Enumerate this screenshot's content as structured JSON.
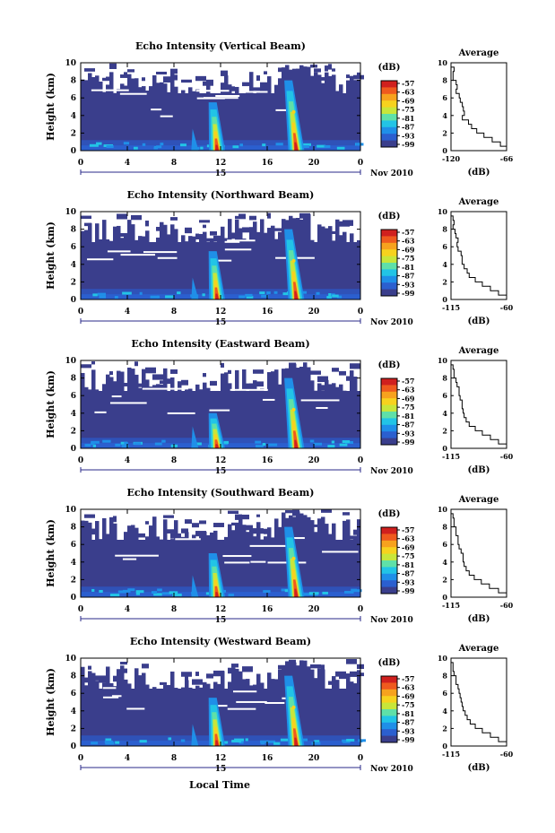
{
  "figure": {
    "xlabel_bottom": "Local Time",
    "date_label": "Nov 2010",
    "day_label": "15",
    "ylabel": "Height (km)",
    "colorbar_unit": "(dB)",
    "profile_title": "Average",
    "profile_xlabel": "(dB)"
  },
  "colors": {
    "background": "#3a3e8c",
    "colormap": [
      "#3a3e8c",
      "#2b5fcf",
      "#1f8fe8",
      "#22c4e6",
      "#5fe0a8",
      "#c8e63a",
      "#f7d21e",
      "#f7a21e",
      "#ef5a1e",
      "#d0201e"
    ]
  },
  "chart_data": [
    {
      "type": "heatmap",
      "title": "Echo Intensity (Vertical Beam)",
      "xlabel": "",
      "ylabel": "Height (km)",
      "x_ticks": [
        "0",
        "4",
        "8",
        "12",
        "16",
        "20",
        "0"
      ],
      "xlim": [
        0,
        24
      ],
      "y_ticks": [
        "0",
        "2",
        "4",
        "6",
        "8",
        "10"
      ],
      "ylim": [
        0,
        10
      ],
      "colorbar": {
        "label": "(dB)",
        "ticks": [
          "-57",
          "-63",
          "-69",
          "-75",
          "-81",
          "-87",
          "-93",
          "-99"
        ]
      },
      "features": [
        {
          "name": "convective_cell_1",
          "time_h": 11.7,
          "top_km": 5.5
        },
        {
          "name": "convective_cell_2",
          "time_h": 18.5,
          "top_km": 8.0
        }
      ],
      "profile": {
        "title": "Average",
        "xlabel": "(dB)",
        "x_ticks": [
          "-120",
          "-66"
        ],
        "xlim": [
          -120,
          -66
        ],
        "y_ticks": [
          "0",
          "2",
          "4",
          "6",
          "8",
          "10"
        ],
        "ylim": [
          0,
          10
        ],
        "points": [
          [
            -66,
            0
          ],
          [
            -72,
            0.5
          ],
          [
            -80,
            1
          ],
          [
            -88,
            1.5
          ],
          [
            -95,
            2
          ],
          [
            -100,
            2.5
          ],
          [
            -103,
            3
          ],
          [
            -109,
            3.5
          ],
          [
            -107,
            4
          ],
          [
            -108,
            4.5
          ],
          [
            -109,
            5
          ],
          [
            -111,
            5.5
          ],
          [
            -112,
            6
          ],
          [
            -115,
            6.5
          ],
          [
            -114,
            7
          ],
          [
            -115,
            7.5
          ],
          [
            -118,
            8
          ],
          [
            -118,
            8.5
          ],
          [
            -117,
            9
          ],
          [
            -120,
            9.5
          ]
        ]
      }
    },
    {
      "type": "heatmap",
      "title": "Echo Intensity (Northward Beam)",
      "xlabel": "",
      "ylabel": "Height (km)",
      "x_ticks": [
        "0",
        "4",
        "8",
        "12",
        "16",
        "20",
        "0"
      ],
      "xlim": [
        0,
        24
      ],
      "y_ticks": [
        "0",
        "2",
        "4",
        "6",
        "8",
        "10"
      ],
      "ylim": [
        0,
        10
      ],
      "colorbar": {
        "label": "(dB)",
        "ticks": [
          "-57",
          "-63",
          "-69",
          "-75",
          "-81",
          "-87",
          "-93",
          "-99"
        ]
      },
      "features": [
        {
          "name": "convective_cell_1",
          "time_h": 11.7,
          "top_km": 5.5
        },
        {
          "name": "convective_cell_2",
          "time_h": 18.5,
          "top_km": 8.0
        }
      ],
      "profile": {
        "title": "Average",
        "xlabel": "(dB)",
        "x_ticks": [
          "-115",
          "-60"
        ],
        "xlim": [
          -115,
          -60
        ],
        "y_ticks": [
          "0",
          "2",
          "4",
          "6",
          "8",
          "10"
        ],
        "ylim": [
          0,
          10
        ],
        "points": [
          [
            -60,
            0
          ],
          [
            -68,
            0.5
          ],
          [
            -76,
            1
          ],
          [
            -84,
            1.5
          ],
          [
            -91,
            2
          ],
          [
            -97,
            2.5
          ],
          [
            -99,
            3
          ],
          [
            -102,
            3.5
          ],
          [
            -104,
            4
          ],
          [
            -104,
            4.5
          ],
          [
            -105,
            5
          ],
          [
            -108,
            5.5
          ],
          [
            -109,
            6
          ],
          [
            -108,
            6.5
          ],
          [
            -110,
            7
          ],
          [
            -111,
            7.5
          ],
          [
            -113,
            8
          ],
          [
            -112,
            8.5
          ],
          [
            -113,
            9
          ],
          [
            -115,
            9.5
          ]
        ]
      }
    },
    {
      "type": "heatmap",
      "title": "Echo Intensity (Eastward Beam)",
      "xlabel": "",
      "ylabel": "Height (km)",
      "x_ticks": [
        "0",
        "4",
        "8",
        "12",
        "16",
        "20",
        "0"
      ],
      "xlim": [
        0,
        24
      ],
      "y_ticks": [
        "0",
        "2",
        "4",
        "6",
        "8",
        "10"
      ],
      "ylim": [
        0,
        10
      ],
      "colorbar": {
        "label": "(dB)",
        "ticks": [
          "-57",
          "-63",
          "-69",
          "-75",
          "-81",
          "-87",
          "-93",
          "-99"
        ]
      },
      "features": [
        {
          "name": "convective_cell_1",
          "time_h": 11.7,
          "top_km": 4.0
        },
        {
          "name": "convective_cell_2",
          "time_h": 18.5,
          "top_km": 8.0
        }
      ],
      "profile": {
        "title": "Average",
        "xlabel": "(dB)",
        "x_ticks": [
          "-115",
          "-60"
        ],
        "xlim": [
          -115,
          -60
        ],
        "y_ticks": [
          "0",
          "2",
          "4",
          "6",
          "8",
          "10"
        ],
        "ylim": [
          0,
          10
        ],
        "points": [
          [
            -60,
            0
          ],
          [
            -68,
            0.5
          ],
          [
            -76,
            1
          ],
          [
            -84,
            1.5
          ],
          [
            -91,
            2
          ],
          [
            -97,
            2.5
          ],
          [
            -100,
            3
          ],
          [
            -102,
            3.5
          ],
          [
            -103,
            4
          ],
          [
            -104,
            4.5
          ],
          [
            -104,
            5
          ],
          [
            -106,
            5.5
          ],
          [
            -107,
            6
          ],
          [
            -107,
            6.5
          ],
          [
            -109,
            7
          ],
          [
            -110,
            7.5
          ],
          [
            -112,
            8
          ],
          [
            -112,
            8.5
          ],
          [
            -113,
            9
          ],
          [
            -115,
            9.5
          ]
        ]
      }
    },
    {
      "type": "heatmap",
      "title": "Echo Intensity (Southward Beam)",
      "xlabel": "",
      "ylabel": "Height (km)",
      "x_ticks": [
        "0",
        "4",
        "8",
        "12",
        "16",
        "20",
        "0"
      ],
      "xlim": [
        0,
        24
      ],
      "y_ticks": [
        "0",
        "2",
        "4",
        "6",
        "8",
        "10"
      ],
      "ylim": [
        0,
        10
      ],
      "colorbar": {
        "label": "(dB)",
        "ticks": [
          "-57",
          "-63",
          "-69",
          "-75",
          "-81",
          "-87",
          "-93",
          "-99"
        ]
      },
      "features": [
        {
          "name": "convective_cell_1",
          "time_h": 11.7,
          "top_km": 5.0
        },
        {
          "name": "convective_cell_2",
          "time_h": 18.5,
          "top_km": 8.0
        }
      ],
      "profile": {
        "title": "Average",
        "xlabel": "(dB)",
        "x_ticks": [
          "-115",
          "-60"
        ],
        "xlim": [
          -115,
          -60
        ],
        "y_ticks": [
          "0",
          "2",
          "4",
          "6",
          "8",
          "10"
        ],
        "ylim": [
          0,
          10
        ],
        "points": [
          [
            -60,
            0
          ],
          [
            -68,
            0.5
          ],
          [
            -77,
            1
          ],
          [
            -85,
            1.5
          ],
          [
            -92,
            2
          ],
          [
            -97,
            2.5
          ],
          [
            -100,
            3
          ],
          [
            -102,
            3.5
          ],
          [
            -103,
            4
          ],
          [
            -103,
            4.5
          ],
          [
            -105,
            5
          ],
          [
            -107,
            5.5
          ],
          [
            -108,
            6
          ],
          [
            -108,
            6.5
          ],
          [
            -110,
            7
          ],
          [
            -110,
            7.5
          ],
          [
            -112,
            8
          ],
          [
            -112,
            8.5
          ],
          [
            -113,
            9
          ],
          [
            -115,
            9.5
          ]
        ]
      }
    },
    {
      "type": "heatmap",
      "title": "Echo Intensity (Westward Beam)",
      "xlabel": "Local Time",
      "ylabel": "Height (km)",
      "x_ticks": [
        "0",
        "4",
        "8",
        "12",
        "16",
        "20",
        "0"
      ],
      "xlim": [
        0,
        24
      ],
      "y_ticks": [
        "0",
        "2",
        "4",
        "6",
        "8",
        "10"
      ],
      "ylim": [
        0,
        10
      ],
      "colorbar": {
        "label": "(dB)",
        "ticks": [
          "-57",
          "-63",
          "-69",
          "-75",
          "-81",
          "-87",
          "-93",
          "-99"
        ]
      },
      "features": [
        {
          "name": "convective_cell_1",
          "time_h": 11.7,
          "top_km": 5.5
        },
        {
          "name": "convective_cell_2",
          "time_h": 18.5,
          "top_km": 8.0
        }
      ],
      "profile": {
        "title": "Average",
        "xlabel": "(dB)",
        "x_ticks": [
          "-115",
          "-60"
        ],
        "xlim": [
          -115,
          -60
        ],
        "y_ticks": [
          "0",
          "2",
          "4",
          "6",
          "8",
          "10"
        ],
        "ylim": [
          0,
          10
        ],
        "points": [
          [
            -60,
            0
          ],
          [
            -68,
            0.5
          ],
          [
            -76,
            1
          ],
          [
            -84,
            1.5
          ],
          [
            -91,
            2
          ],
          [
            -96,
            2.5
          ],
          [
            -99,
            3
          ],
          [
            -101,
            3.5
          ],
          [
            -103,
            4
          ],
          [
            -104,
            4.5
          ],
          [
            -105,
            5
          ],
          [
            -106,
            5.5
          ],
          [
            -107,
            6
          ],
          [
            -108,
            6.5
          ],
          [
            -110,
            7
          ],
          [
            -110,
            7.5
          ],
          [
            -112,
            8
          ],
          [
            -113,
            8.5
          ],
          [
            -113,
            9
          ],
          [
            -115,
            9.5
          ]
        ]
      }
    }
  ]
}
